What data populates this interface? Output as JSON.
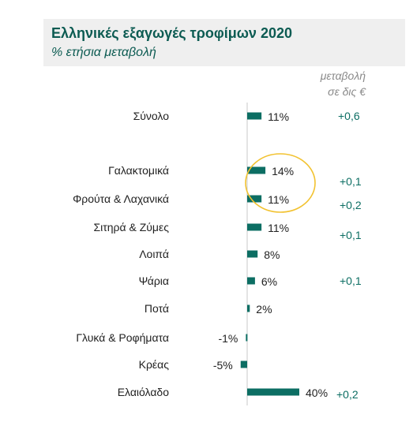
{
  "header": {
    "title": "Ελληνικές εξαγωγές τροφίμων 2020",
    "subtitle": "% ετήσια μεταβολή"
  },
  "change_column": {
    "label_line1": "μεταβολή",
    "label_line2": "σε δις €"
  },
  "colors": {
    "bar": "#0c6e63",
    "title": "#0c5b52",
    "header_bg": "#efefef",
    "highlight_circle": "#f2c230"
  },
  "chart_data": {
    "type": "bar",
    "orientation": "horizontal",
    "title": "Ελληνικές εξαγωγές τροφίμων 2020",
    "subtitle": "% ετήσια μεταβολή",
    "unit": "%",
    "categories": [
      "Σύνολο",
      "Γαλακτομικά",
      "Φρούτα & Λαχανικά",
      "Σιτηρά & Ζύμες",
      "Λοιπά",
      "Ψάρια",
      "Ποτά",
      "Γλυκά & Ροφήματα",
      "Κρέας",
      "Ελαιόλαδο"
    ],
    "values": [
      11,
      14,
      11,
      11,
      8,
      6,
      2,
      -1,
      -5,
      40
    ],
    "value_labels": [
      "11%",
      "14%",
      "11%",
      "11%",
      "8%",
      "6%",
      "2%",
      "-1%",
      "-5%",
      "40%"
    ],
    "change_bn_eur": [
      "+0,6",
      "+0,1",
      "+0,2",
      "+0,1",
      "",
      "+0,1",
      "",
      "",
      "",
      "+0,2"
    ],
    "highlighted_categories": [
      "Γαλακτομικά",
      "Φρούτα & Λαχανικά"
    ],
    "grid": false,
    "legend": "none"
  }
}
